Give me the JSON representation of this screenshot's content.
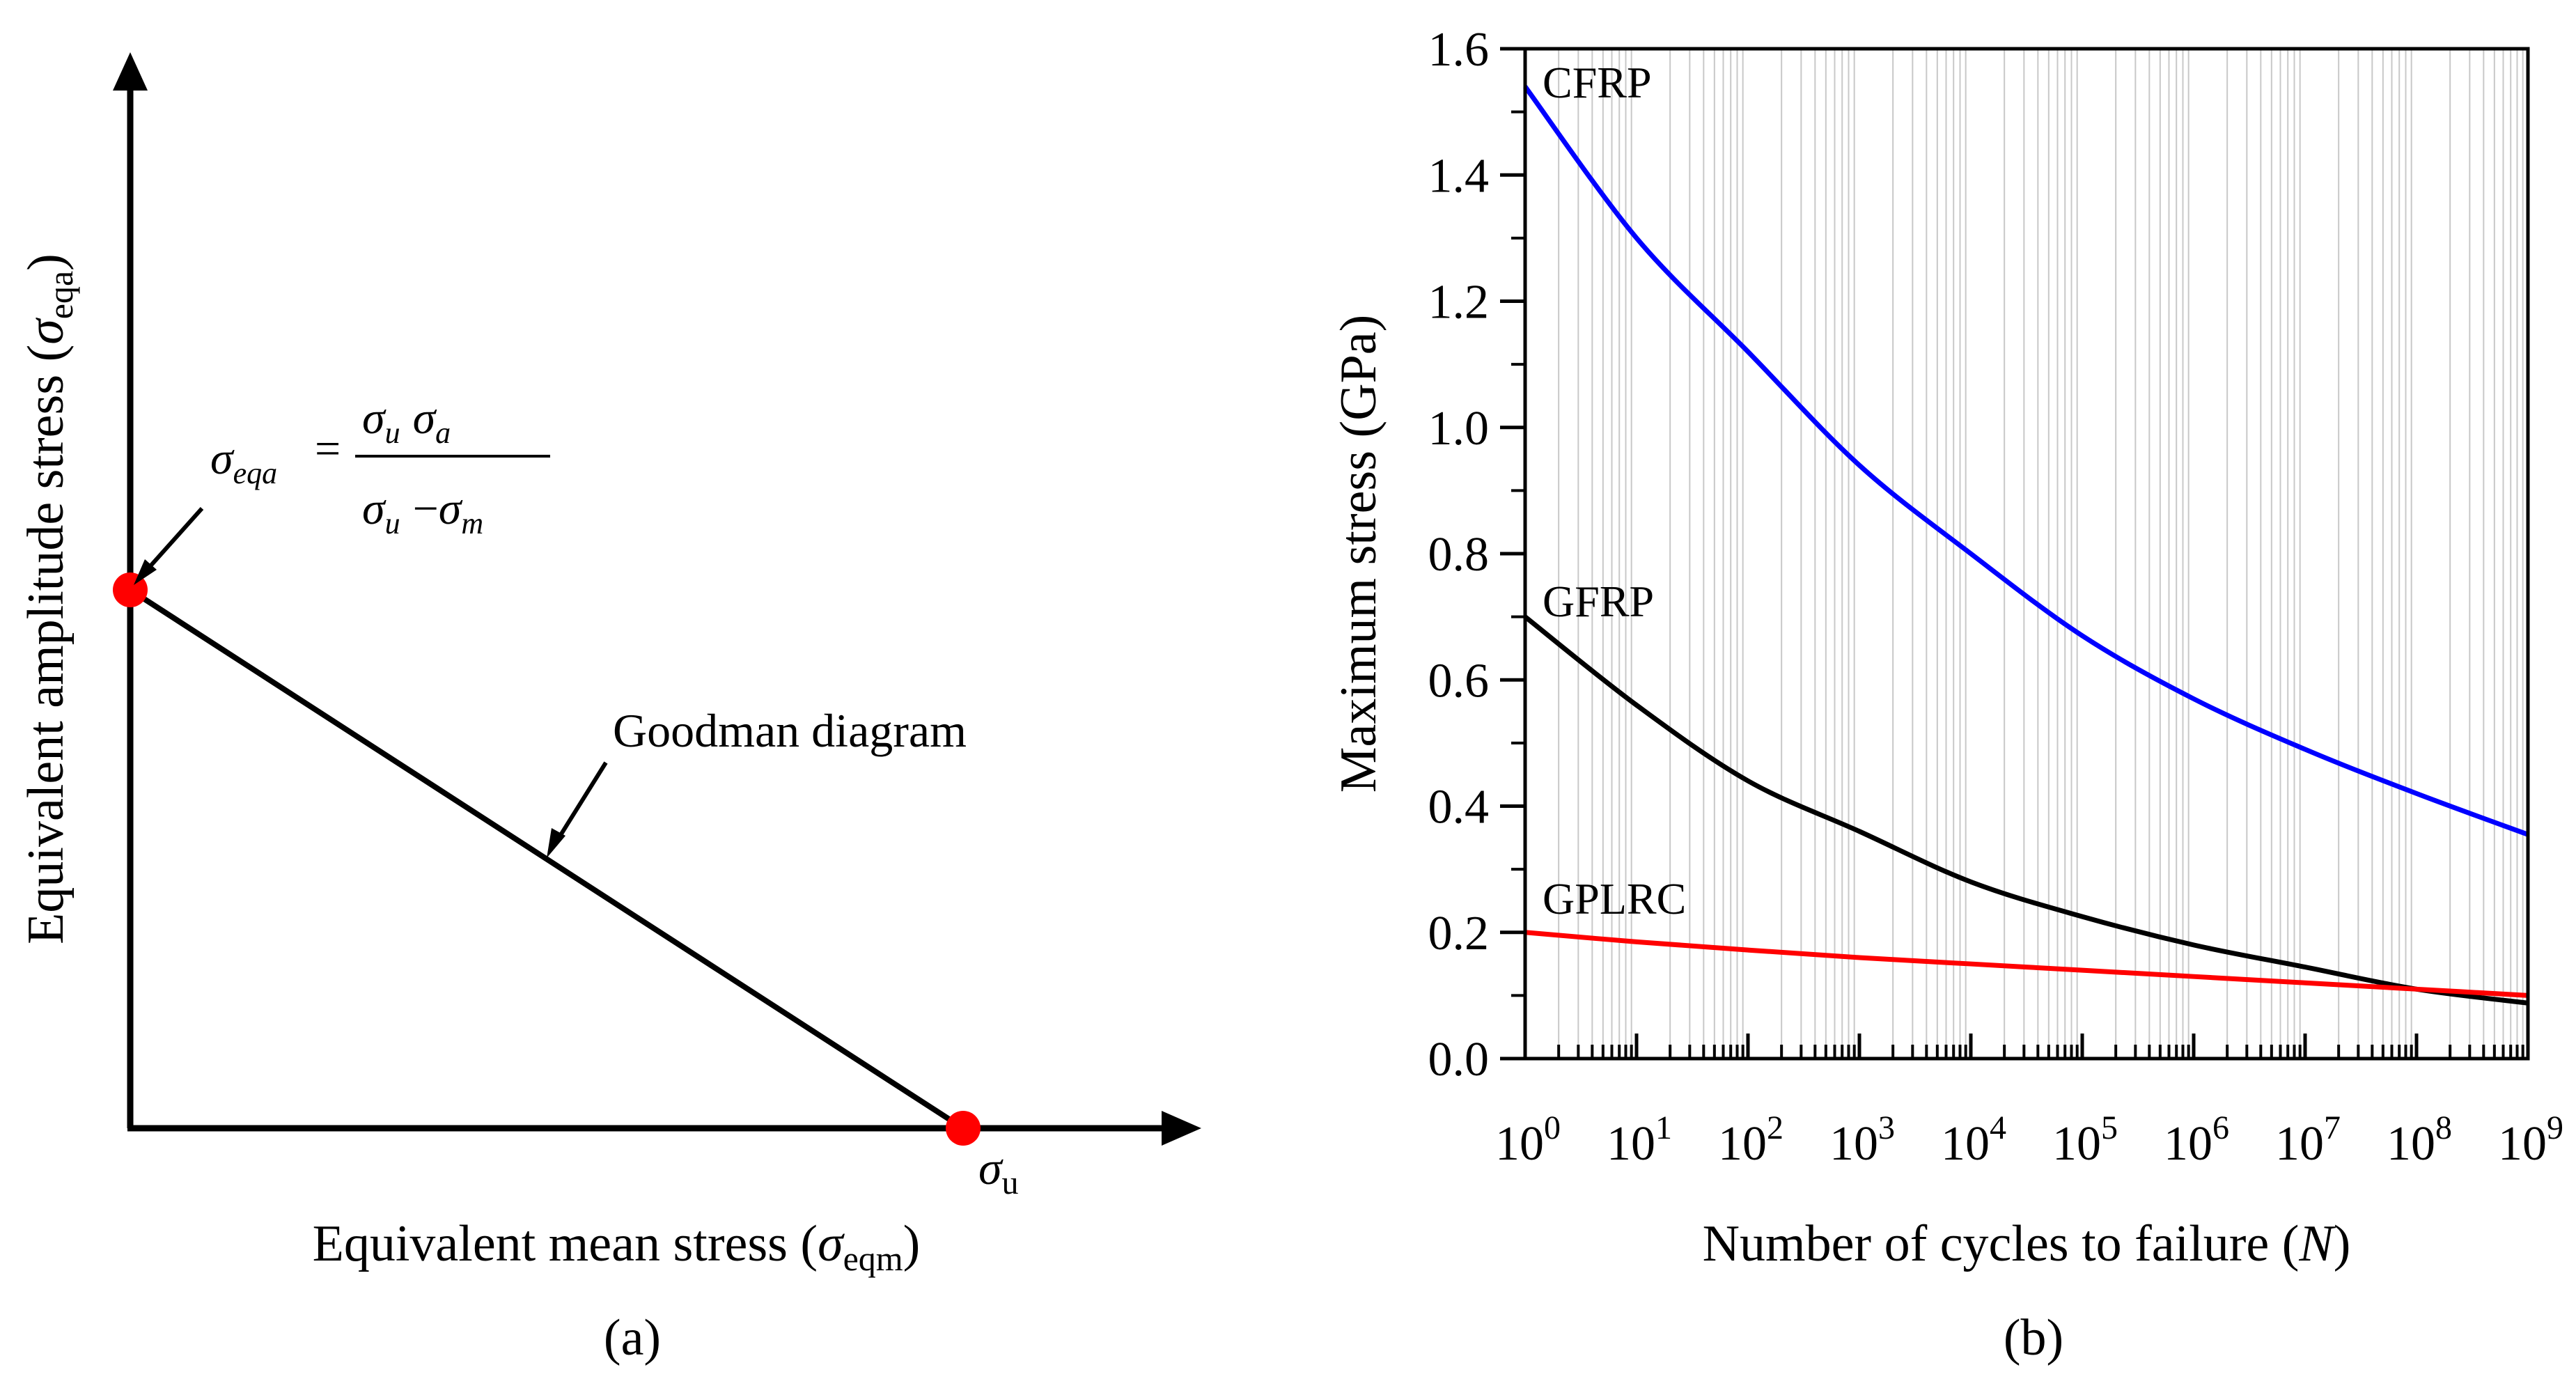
{
  "panel_a": {
    "caption": "(a)",
    "xlabel_prefix": "Equivalent mean stress (",
    "xlabel_sym": "σ",
    "xlabel_sub": "eqm",
    "xlabel_suffix": ")",
    "ylabel_prefix": "Equivalent amplitude stress (",
    "ylabel_sym": "σ",
    "ylabel_sub": "eqa",
    "ylabel_suffix": ")",
    "line_annotation": "Goodman diagram",
    "point_label_sym": "σ",
    "point_label_sub": "u",
    "formula": {
      "lhs_sym": "σ",
      "lhs_sub": "eqa",
      "eq": "=",
      "num_s1": "σ",
      "num_sub1": "u",
      "num_s2": "σ",
      "num_sub2": "a",
      "den_s1": "σ",
      "den_sub1": "u",
      "den_op": "−",
      "den_s2": "σ",
      "den_sub2": "m"
    },
    "point_color": "#ff0000"
  },
  "panel_b": {
    "caption": "(b)",
    "chart_data": {
      "type": "line",
      "ylabel": "Maximum stress (GPa)",
      "xlabel_prefix": "Number of cycles to failure (",
      "xlabel_var": "N",
      "xlabel_suffix": ")",
      "xscale": "log",
      "xlim": [
        1,
        1000000000
      ],
      "ylim": [
        0.0,
        1.6
      ],
      "grid": true,
      "y_ticks": [
        "0.0",
        "0.2",
        "0.4",
        "0.6",
        "0.8",
        "1.0",
        "1.2",
        "1.4",
        "1.6"
      ],
      "x_tick_base": "10",
      "x_tick_exponents": [
        "0",
        "1",
        "2",
        "3",
        "4",
        "5",
        "6",
        "7",
        "8",
        "9"
      ],
      "series": [
        {
          "name": "CFRP",
          "color": "#0000ff",
          "x": [
            1,
            10,
            100,
            1000,
            10000,
            100000,
            1000000,
            10000000,
            100000000,
            1000000000
          ],
          "y": [
            1.54,
            1.3,
            1.12,
            0.94,
            0.8,
            0.67,
            0.57,
            0.49,
            0.42,
            0.355
          ]
        },
        {
          "name": "GFRP",
          "color": "#000000",
          "x": [
            1,
            10,
            100,
            1000,
            10000,
            100000,
            1000000,
            10000000,
            100000000,
            1000000000
          ],
          "y": [
            0.7,
            0.56,
            0.44,
            0.36,
            0.28,
            0.225,
            0.18,
            0.145,
            0.11,
            0.088
          ]
        },
        {
          "name": "GPLRC",
          "color": "#ff0000",
          "x": [
            1,
            10,
            100,
            1000,
            10000,
            100000,
            1000000,
            10000000,
            100000000,
            1000000000
          ],
          "y": [
            0.2,
            0.185,
            0.172,
            0.16,
            0.15,
            0.14,
            0.13,
            0.12,
            0.11,
            0.1
          ]
        }
      ]
    }
  }
}
